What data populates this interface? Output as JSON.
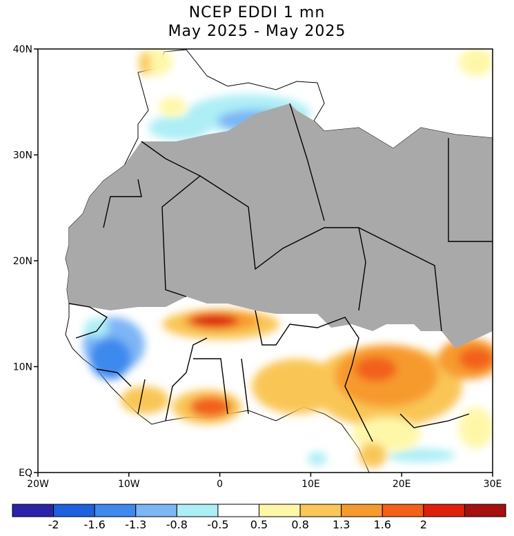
{
  "title": "NCEP EDDI 1 mn",
  "subtitle": "May 2025 - May 2025",
  "map": {
    "lon_range": [
      -20,
      30
    ],
    "lat_range": [
      0,
      40
    ],
    "y_tick_labels": [
      "40N",
      "30N",
      "20N",
      "10N",
      "EQ"
    ],
    "x_tick_labels": [
      "20W",
      "10W",
      "0",
      "10E",
      "20E",
      "30E"
    ],
    "ocean_color": "#ffffff",
    "no_data_color": "#a9a9a9",
    "border_color": "#000000"
  },
  "colorbar": {
    "labels": [
      "-2",
      "-1.6",
      "-1.3",
      "-0.8",
      "-0.5",
      "0.5",
      "0.8",
      "1.3",
      "1.6",
      "2"
    ],
    "colors": [
      "#2b23a8",
      "#1e60dd",
      "#3e89ee",
      "#7db5f5",
      "#aeeef5",
      "#ffffff",
      "#fff7a8",
      "#f9c657",
      "#f79a2e",
      "#f2601a",
      "#dd210d",
      "#a50f0f"
    ]
  }
}
